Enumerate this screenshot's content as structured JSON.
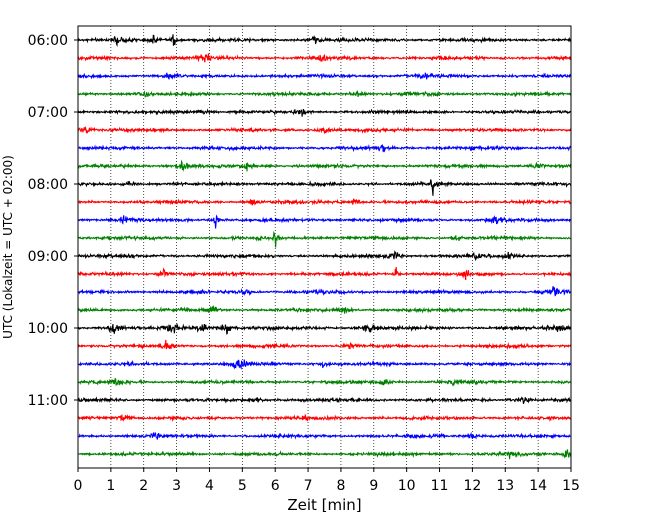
{
  "chart_data": {
    "type": "line",
    "chart_kind": "helicorder / seismogram drum plot",
    "xlabel": "Zeit  [min]",
    "ylabel": "UTC (Lokalzeit = UTC + 02:00)",
    "xlim": [
      0,
      15
    ],
    "x_ticks": [
      0,
      1,
      2,
      3,
      4,
      5,
      6,
      7,
      8,
      9,
      10,
      11,
      12,
      13,
      14,
      15
    ],
    "grid": "vertical dotted lines at each minute",
    "y_tick_labels": [
      "06:00",
      "07:00",
      "08:00",
      "09:00",
      "10:00",
      "11:00"
    ],
    "traces_per_hour": 4,
    "minutes_per_trace": 15,
    "color_cycle": [
      "#000000",
      "#ff0000",
      "#0000ff",
      "#008000"
    ],
    "traces": [
      {
        "start": "06:00",
        "color": "#000000",
        "events": [
          [
            1.2,
            0.3
          ],
          [
            2.3,
            0.35
          ],
          [
            2.9,
            1.3
          ],
          [
            7.2,
            0.3
          ]
        ]
      },
      {
        "start": "06:15",
        "color": "#ff0000",
        "events": [
          [
            3.9,
            0.3
          ],
          [
            7.4,
            0.35
          ]
        ]
      },
      {
        "start": "06:30",
        "color": "#0000ff",
        "events": [
          [
            2.8,
            0.25
          ],
          [
            10.6,
            0.25
          ]
        ]
      },
      {
        "start": "06:45",
        "color": "#008000",
        "events": [
          [
            2.0,
            0.2
          ],
          [
            8.5,
            0.25
          ]
        ]
      },
      {
        "start": "07:00",
        "color": "#000000",
        "events": [
          [
            3.8,
            0.35
          ],
          [
            6.8,
            0.3
          ]
        ]
      },
      {
        "start": "07:15",
        "color": "#ff0000",
        "events": [
          [
            0.2,
            0.3
          ],
          [
            7.5,
            0.25
          ]
        ]
      },
      {
        "start": "07:30",
        "color": "#0000ff",
        "events": [
          [
            9.3,
            0.25
          ],
          [
            12.0,
            0.2
          ]
        ]
      },
      {
        "start": "07:45",
        "color": "#008000",
        "events": [
          [
            3.2,
            0.4
          ],
          [
            5.1,
            0.35
          ],
          [
            14.0,
            0.25
          ]
        ]
      },
      {
        "start": "08:00",
        "color": "#000000",
        "events": [
          [
            1.6,
            0.25
          ],
          [
            10.8,
            1.4
          ]
        ]
      },
      {
        "start": "08:15",
        "color": "#ff0000",
        "events": [
          [
            5.3,
            0.3
          ],
          [
            8.4,
            0.3
          ]
        ]
      },
      {
        "start": "08:30",
        "color": "#0000ff",
        "events": [
          [
            1.4,
            0.35
          ],
          [
            4.2,
            1.2
          ],
          [
            12.7,
            0.5
          ]
        ]
      },
      {
        "start": "08:45",
        "color": "#008000",
        "events": [
          [
            6.0,
            0.9
          ],
          [
            11.5,
            0.25
          ]
        ]
      },
      {
        "start": "09:00",
        "color": "#000000",
        "events": [
          [
            9.6,
            0.4
          ],
          [
            12.1,
            0.35
          ],
          [
            13.1,
            0.3
          ]
        ]
      },
      {
        "start": "09:15",
        "color": "#ff0000",
        "events": [
          [
            2.6,
            0.3
          ],
          [
            9.7,
            1.6
          ],
          [
            11.8,
            0.3
          ]
        ]
      },
      {
        "start": "09:30",
        "color": "#0000ff",
        "events": [
          [
            5.1,
            0.25
          ],
          [
            14.5,
            0.5
          ]
        ]
      },
      {
        "start": "09:45",
        "color": "#008000",
        "events": [
          [
            4.1,
            0.3
          ],
          [
            8.1,
            0.25
          ]
        ]
      },
      {
        "start": "10:00",
        "color": "#000000",
        "events": [
          [
            1.1,
            0.6
          ],
          [
            2.9,
            0.5
          ],
          [
            3.8,
            0.4
          ],
          [
            4.5,
            0.8
          ],
          [
            8.8,
            0.5
          ],
          [
            14.6,
            0.5
          ]
        ]
      },
      {
        "start": "10:15",
        "color": "#ff0000",
        "events": [
          [
            2.7,
            0.4
          ],
          [
            8.3,
            0.3
          ]
        ]
      },
      {
        "start": "10:30",
        "color": "#0000ff",
        "events": [
          [
            4.9,
            0.7
          ],
          [
            7.5,
            0.25
          ]
        ]
      },
      {
        "start": "10:45",
        "color": "#008000",
        "events": [
          [
            1.2,
            0.25
          ],
          [
            9.3,
            0.25
          ],
          [
            11.4,
            0.3
          ]
        ]
      },
      {
        "start": "11:00",
        "color": "#000000",
        "events": [
          [
            5.4,
            0.25
          ],
          [
            13.5,
            0.35
          ]
        ]
      },
      {
        "start": "11:15",
        "color": "#ff0000",
        "events": [
          [
            1.4,
            0.35
          ],
          [
            6.9,
            0.25
          ]
        ]
      },
      {
        "start": "11:30",
        "color": "#0000ff",
        "events": [
          [
            2.4,
            0.25
          ],
          [
            12.0,
            0.25
          ]
        ]
      },
      {
        "start": "11:45",
        "color": "#008000",
        "events": [
          [
            13.2,
            0.35
          ],
          [
            14.9,
            0.3
          ]
        ]
      }
    ]
  }
}
